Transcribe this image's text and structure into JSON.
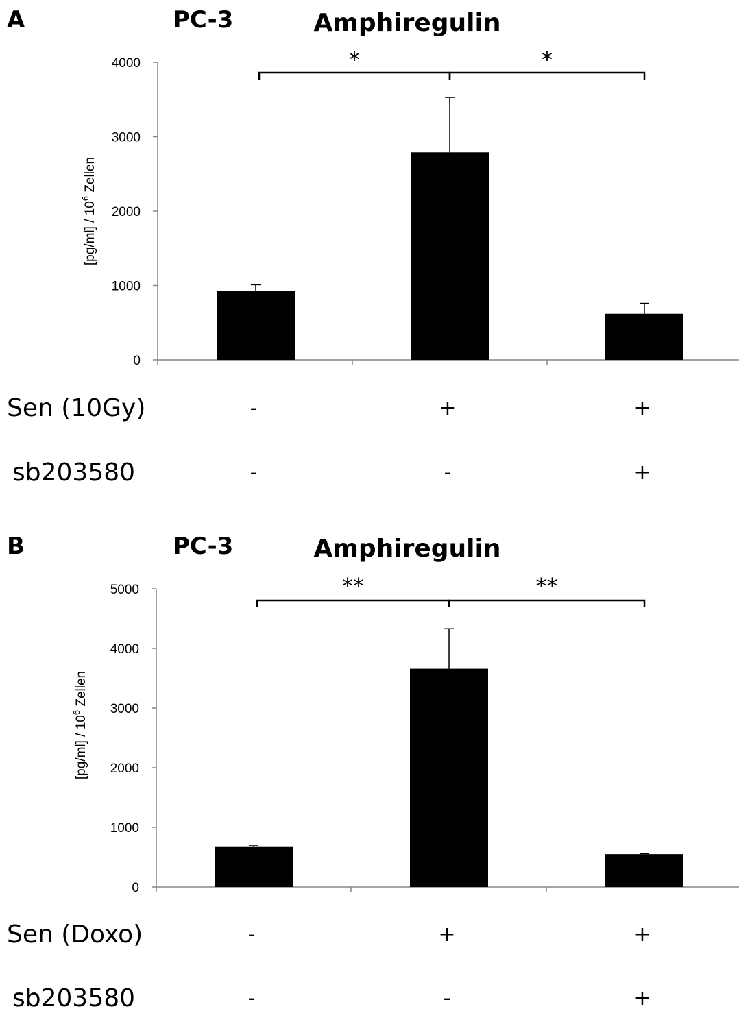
{
  "chart_data": [
    {
      "type": "bar",
      "panel_label": "A",
      "cell_line": "PC-3",
      "title": "Amphiregulin",
      "ylabel": "[pg/ml] / 10",
      "ylabel_sup": "6",
      "ylabel_suffix": " Zellen",
      "ylim": [
        0,
        4000
      ],
      "yticks": [
        0,
        1000,
        2000,
        3000,
        4000
      ],
      "series": [
        {
          "values": [
            930,
            2790,
            620
          ],
          "errors": [
            80,
            740,
            140
          ],
          "color": "#000000"
        }
      ],
      "conditions": [
        {
          "label": "Sen (10Gy)",
          "symbols": [
            "-",
            "+",
            "+"
          ]
        },
        {
          "label": "sb203580",
          "symbols": [
            "-",
            "-",
            "+"
          ]
        }
      ],
      "significance": [
        {
          "from": 0,
          "to": 1,
          "text": "*"
        },
        {
          "from": 1,
          "to": 2,
          "text": "*"
        }
      ]
    },
    {
      "type": "bar",
      "panel_label": "B",
      "cell_line": "PC-3",
      "title": "Amphiregulin",
      "ylabel": "[pg/ml] / 10",
      "ylabel_sup": "6",
      "ylabel_suffix": " Zellen",
      "ylim": [
        0,
        5000
      ],
      "yticks": [
        0,
        1000,
        2000,
        3000,
        4000,
        5000
      ],
      "series": [
        {
          "values": [
            670,
            3660,
            550
          ],
          "errors": [
            20,
            670,
            10
          ],
          "color": "#000000"
        }
      ],
      "conditions": [
        {
          "label": "Sen (Doxo)",
          "symbols": [
            "-",
            "+",
            "+"
          ]
        },
        {
          "label": "sb203580",
          "symbols": [
            "-",
            "-",
            "+"
          ]
        }
      ],
      "significance": [
        {
          "from": 0,
          "to": 1,
          "text": "**"
        },
        {
          "from": 1,
          "to": 2,
          "text": "**"
        }
      ]
    }
  ]
}
